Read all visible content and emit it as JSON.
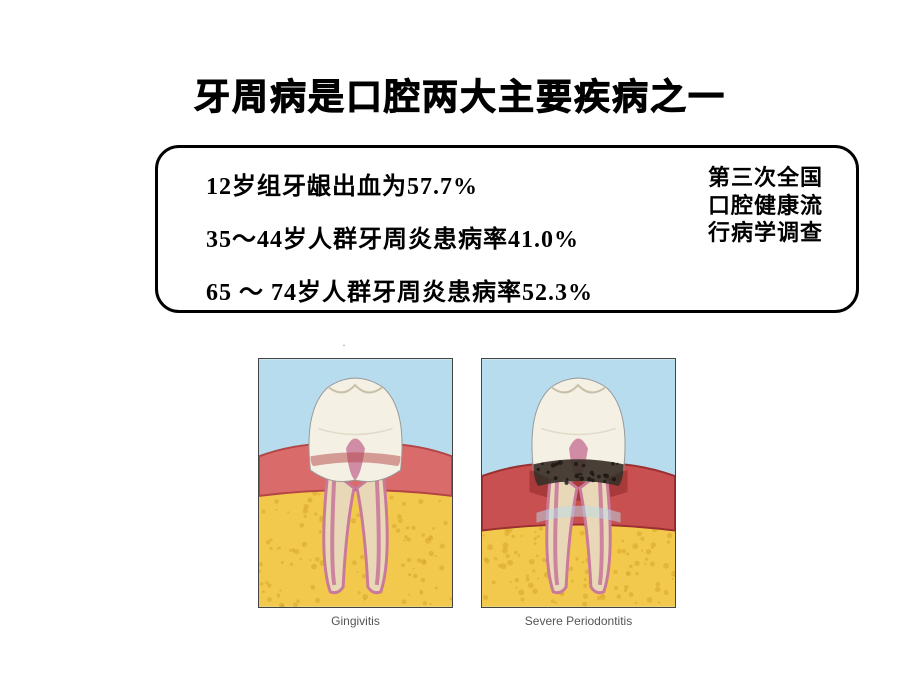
{
  "title": "牙周病是口腔两大主要疾病之一",
  "stats": {
    "line1": "12岁组牙龈出血为57.7%",
    "line2": "35～44岁人群牙周炎患病率41.0%",
    "line3": "65 ～ 74岁人群牙周炎患病率52.3%"
  },
  "side_note": "第三次全国口腔健康流行病学调查",
  "page_indicator": "·",
  "figures": {
    "left": {
      "caption": "Gingivitis",
      "bg": "#b7dcee",
      "bone": "#f2c94c",
      "gum": "#d96b6b",
      "gum_edge": "#b34545",
      "crown": "#f4f0e4",
      "root": "#e8d8b8",
      "root_inner": "#c97a9a",
      "bone_texture": "#d9a82e"
    },
    "right": {
      "caption": "Severe Periodontitis",
      "bg": "#b7dcee",
      "bone": "#f2c94c",
      "gum": "#c85050",
      "gum_edge": "#9a3030",
      "crown": "#f4f0e4",
      "root": "#e8d8b8",
      "root_inner": "#c97a9a",
      "bone_texture": "#d9a82e",
      "plaque": "#3a3028"
    }
  },
  "colors": {
    "text": "#000000",
    "border": "#000000",
    "bg": "#ffffff"
  }
}
